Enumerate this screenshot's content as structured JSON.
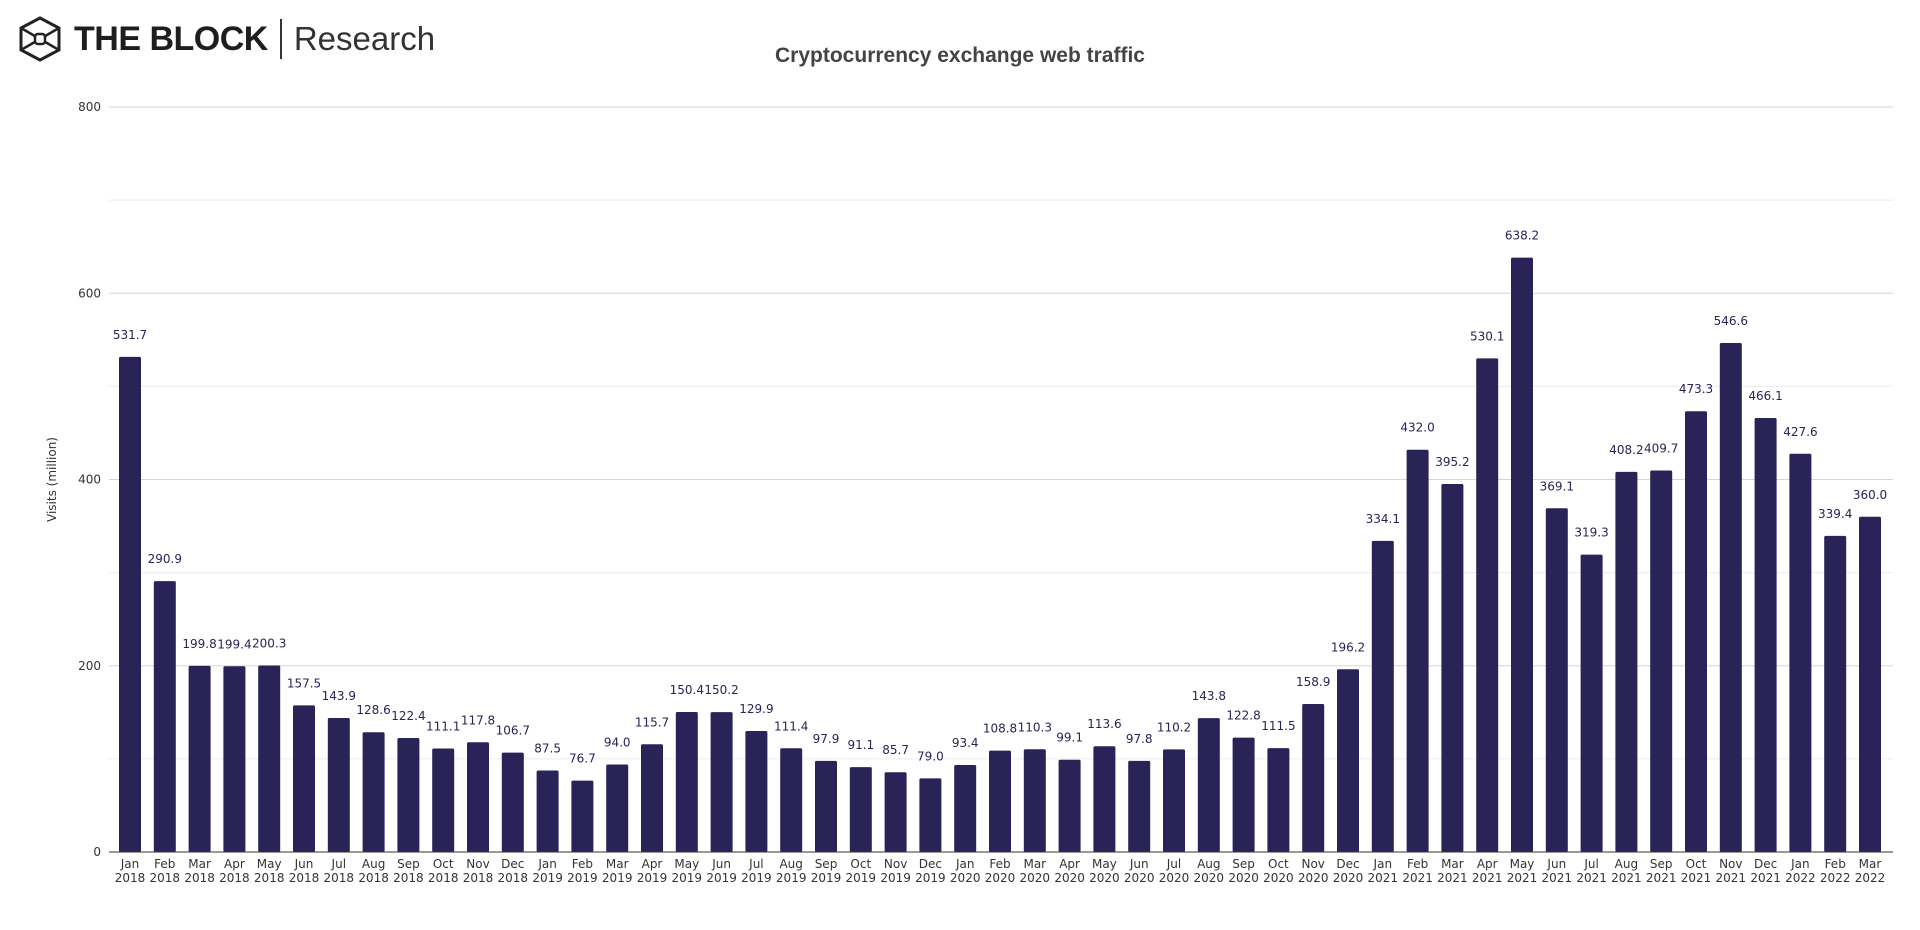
{
  "brand": {
    "name": "THE BLOCK",
    "suffix": "Research",
    "logo_icon": "cube-hexagon-icon"
  },
  "chart_data": {
    "type": "bar",
    "title": "Cryptocurrency exchange web traffic",
    "xlabel": "",
    "ylabel": "Visits (million)",
    "ylim": [
      0,
      800
    ],
    "yticks": [
      0,
      200,
      400,
      600,
      800
    ],
    "grid": true,
    "bar_color": "#2a2357",
    "categories": [
      "Jan 2018",
      "Feb 2018",
      "Mar 2018",
      "Apr 2018",
      "May 2018",
      "Jun 2018",
      "Jul 2018",
      "Aug 2018",
      "Sep 2018",
      "Oct 2018",
      "Nov 2018",
      "Dec 2018",
      "Jan 2019",
      "Feb 2019",
      "Mar 2019",
      "Apr 2019",
      "May 2019",
      "Jun 2019",
      "Jul 2019",
      "Aug 2019",
      "Sep 2019",
      "Oct 2019",
      "Nov 2019",
      "Dec 2019",
      "Jan 2020",
      "Feb 2020",
      "Mar 2020",
      "Apr 2020",
      "May 2020",
      "Jun 2020",
      "Jul 2020",
      "Aug 2020",
      "Sep 2020",
      "Oct 2020",
      "Nov 2020",
      "Dec 2020",
      "Jan 2021",
      "Feb 2021",
      "Mar 2021",
      "Apr 2021",
      "May 2021",
      "Jun 2021",
      "Jul 2021",
      "Aug 2021",
      "Sep 2021",
      "Oct 2021",
      "Nov 2021",
      "Dec 2021",
      "Jan 2022",
      "Feb 2022",
      "Mar 2022"
    ],
    "values": [
      531.7,
      290.9,
      199.8,
      199.4,
      200.3,
      157.5,
      143.9,
      128.6,
      122.4,
      111.1,
      117.8,
      106.7,
      87.5,
      76.7,
      94.0,
      115.7,
      150.4,
      150.2,
      129.9,
      111.4,
      97.9,
      91.1,
      85.7,
      79.0,
      93.4,
      108.8,
      110.3,
      99.1,
      113.6,
      97.8,
      110.2,
      143.8,
      122.8,
      111.5,
      158.9,
      196.2,
      334.1,
      432.0,
      395.2,
      530.1,
      638.2,
      369.1,
      319.3,
      408.2,
      409.7,
      473.3,
      546.6,
      466.1,
      427.6,
      339.4,
      360.0
    ]
  }
}
